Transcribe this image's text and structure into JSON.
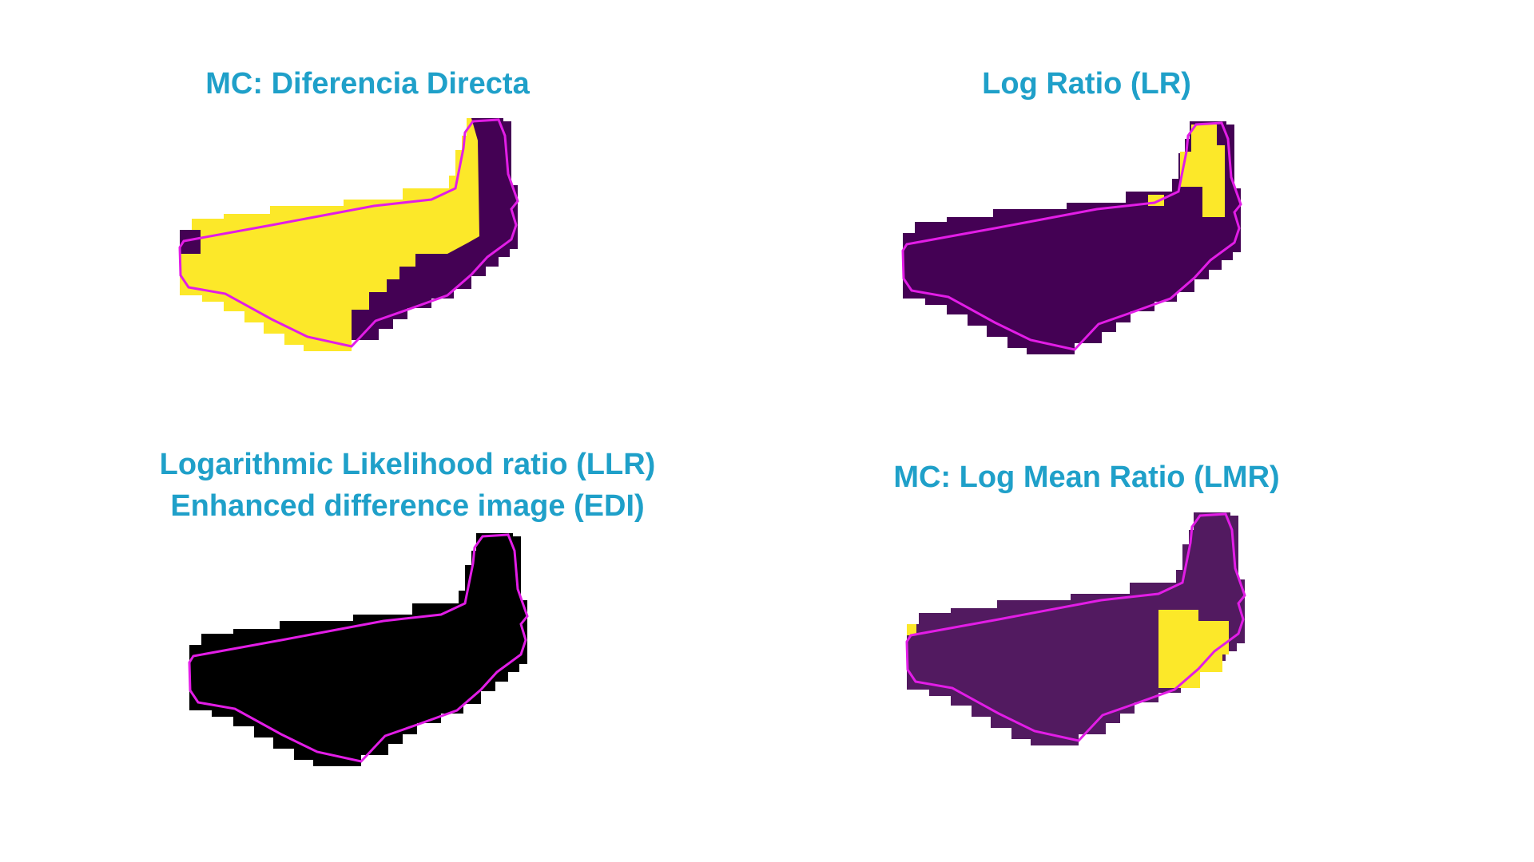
{
  "panels": [
    {
      "title": "MC: Diferencia Directa",
      "colors": {
        "base": "#fce829",
        "change": "#440154",
        "outline": "#e21de6"
      }
    },
    {
      "title": "Log Ratio (LR)",
      "colors": {
        "base": "#440154",
        "change": "#fce829",
        "outline": "#e21de6"
      }
    },
    {
      "title_lines": [
        "Logarithmic Likelihood ratio (LLR)",
        "Enhanced difference image (EDI)"
      ],
      "colors": {
        "base": "#000000",
        "outline": "#e21de6"
      }
    },
    {
      "title": "MC: Log Mean Ratio (LMR)",
      "colors": {
        "base": "#521a60",
        "change": "#fce829",
        "outline": "#e21de6"
      }
    }
  ]
}
